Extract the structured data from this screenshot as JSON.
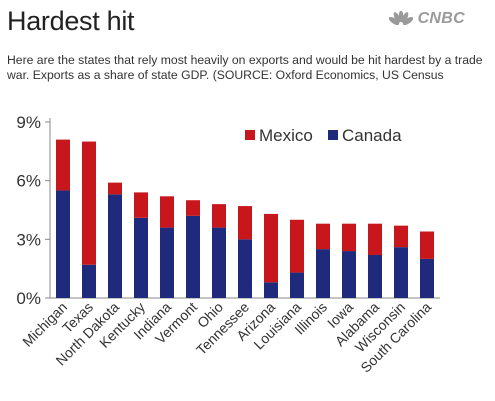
{
  "header": {
    "title": "Hardest hit",
    "logo_text": "CNBC",
    "description": "Here are the states that rely most heavily on exports and would be hit hardest by a trade war.  Exports as a share of state GDP. (SOURCE: Oxford Economics, US Census"
  },
  "colors": {
    "mexico": "#c8161d",
    "canada": "#1f2a7c"
  },
  "chart_data": {
    "type": "bar",
    "stacked": true,
    "categories": [
      "Michigan",
      "Texas",
      "North Dakota",
      "Kentucky",
      "Indiana",
      "Vermont",
      "Ohio",
      "Tennessee",
      "Arizona",
      "Louisiana",
      "Illinois",
      "Iowa",
      "Alabama",
      "Wisconsin",
      "South Carolina"
    ],
    "series": [
      {
        "name": "Canada",
        "values": [
          5.5,
          1.7,
          5.3,
          4.1,
          3.6,
          4.2,
          3.6,
          3.0,
          0.8,
          1.3,
          2.5,
          2.4,
          2.2,
          2.6,
          2.0
        ]
      },
      {
        "name": "Mexico",
        "values": [
          2.6,
          6.3,
          0.6,
          1.3,
          1.6,
          0.8,
          1.2,
          1.7,
          3.5,
          2.7,
          1.3,
          1.4,
          1.6,
          1.1,
          1.4
        ]
      }
    ],
    "ylim": [
      0,
      9
    ],
    "yticks": [
      0,
      3,
      6,
      9
    ],
    "ytick_labels": [
      "0%",
      "3%",
      "6%",
      "9%"
    ],
    "legend": [
      "Mexico",
      "Canada"
    ],
    "legend_position": "top-right",
    "grid": false
  }
}
